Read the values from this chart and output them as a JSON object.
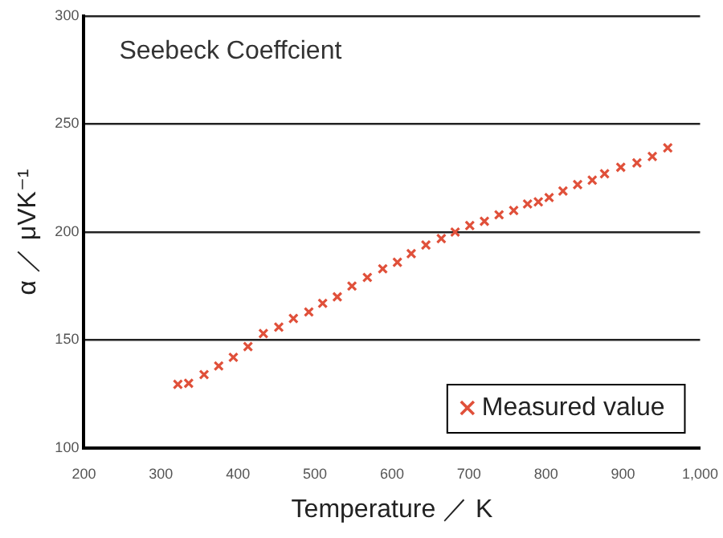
{
  "chart_data": {
    "type": "scatter",
    "title": "Seebeck Coeffcient",
    "xlabel": "Temperature ／ K",
    "ylabel": "α ／ μVK⁻¹",
    "x": [
      322,
      336,
      356,
      375,
      394,
      413,
      433,
      453,
      472,
      492,
      510,
      529,
      548,
      568,
      588,
      607,
      625,
      644,
      664,
      682,
      701,
      720,
      739,
      758,
      776,
      790,
      804,
      822,
      841,
      860,
      876,
      897,
      918,
      938,
      958
    ],
    "series": [
      {
        "name": "Measured value",
        "color": "#e0503a",
        "values": [
          129.5,
          130,
          134,
          138,
          142,
          147,
          153,
          156,
          160,
          163,
          167,
          170,
          175,
          179,
          183,
          186,
          190,
          194,
          197,
          200,
          203,
          205,
          208,
          210,
          213,
          214,
          216,
          219,
          222,
          224,
          227,
          230,
          232,
          235,
          239
        ]
      }
    ],
    "xlim": [
      200,
      1000
    ],
    "xticks": [
      200,
      300,
      400,
      500,
      600,
      700,
      800,
      900,
      {
        "value": 1000,
        "label": "1,000"
      }
    ],
    "ylim": [
      100,
      300
    ],
    "yticks": [
      100,
      150,
      200,
      250,
      300
    ],
    "grid": "y",
    "legend": "bottom right",
    "marker": "cross"
  }
}
